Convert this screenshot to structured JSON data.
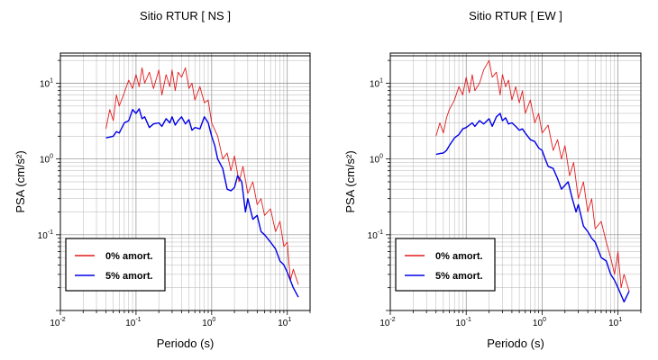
{
  "chart_data": [
    {
      "type": "line",
      "title": "Sitio RTUR [ NS ]",
      "xlabel": "Periodo (s)",
      "ylabel": "PSA (cm/s²)",
      "xscale": "log",
      "yscale": "log",
      "xlim": [
        0.01,
        20
      ],
      "ylim": [
        0.01,
        25
      ],
      "xticks": [
        {
          "base": "10",
          "exp": "-2",
          "value": 0.01
        },
        {
          "base": "10",
          "exp": "-1",
          "value": 0.1
        },
        {
          "base": "10",
          "exp": "0",
          "value": 1
        },
        {
          "base": "10",
          "exp": "1",
          "value": 10
        }
      ],
      "yticks": [
        {
          "base": "10",
          "exp": "-1",
          "value": 0.1
        },
        {
          "base": "10",
          "exp": "0",
          "value": 1
        },
        {
          "base": "10",
          "exp": "1",
          "value": 10
        }
      ],
      "grid": true,
      "legend_position": "bottom-left",
      "series": [
        {
          "name": "0% amort.",
          "color": "#e41a1c",
          "x": [
            0.04,
            0.045,
            0.05,
            0.055,
            0.06,
            0.07,
            0.08,
            0.09,
            0.1,
            0.11,
            0.12,
            0.13,
            0.15,
            0.17,
            0.2,
            0.22,
            0.25,
            0.28,
            0.3,
            0.33,
            0.36,
            0.4,
            0.45,
            0.5,
            0.55,
            0.6,
            0.7,
            0.8,
            0.9,
            1.0,
            1.2,
            1.4,
            1.6,
            1.8,
            2.0,
            2.3,
            2.6,
            3.0,
            3.5,
            4.0,
            4.5,
            5.0,
            6.0,
            7.0,
            8.0,
            9.0,
            10.0,
            11.0,
            12.0,
            14.0
          ],
          "y": [
            2.5,
            4.5,
            3.2,
            7.0,
            5.0,
            7.5,
            11,
            8.5,
            13,
            9.0,
            16,
            10,
            14,
            8.5,
            15,
            7.0,
            13,
            9.0,
            15,
            8.0,
            14,
            12,
            16,
            8.5,
            10,
            6.0,
            9.0,
            5.5,
            6.0,
            3.0,
            2.0,
            1.0,
            1.2,
            0.7,
            1.1,
            0.5,
            0.8,
            0.35,
            0.5,
            0.25,
            0.3,
            0.18,
            0.22,
            0.11,
            0.15,
            0.07,
            0.08,
            0.025,
            0.035,
            0.022
          ]
        },
        {
          "name": "5% amort.",
          "color": "#0000e6",
          "x": [
            0.04,
            0.045,
            0.05,
            0.055,
            0.06,
            0.07,
            0.08,
            0.09,
            0.1,
            0.11,
            0.12,
            0.13,
            0.15,
            0.17,
            0.2,
            0.22,
            0.25,
            0.28,
            0.3,
            0.33,
            0.36,
            0.4,
            0.45,
            0.5,
            0.55,
            0.6,
            0.7,
            0.8,
            0.9,
            1.0,
            1.1,
            1.2,
            1.4,
            1.6,
            1.8,
            2.0,
            2.2,
            2.5,
            2.8,
            3.0,
            3.5,
            4.0,
            4.5,
            5.0,
            6.0,
            7.0,
            8.0,
            9.0,
            10.0,
            11.0,
            12.0,
            14.0
          ],
          "y": [
            1.9,
            1.95,
            2.0,
            2.3,
            2.2,
            3.0,
            3.2,
            4.5,
            4.0,
            4.6,
            3.4,
            3.6,
            2.6,
            2.9,
            3.0,
            2.7,
            3.4,
            3.0,
            3.6,
            2.8,
            3.2,
            3.6,
            2.9,
            3.3,
            2.4,
            2.6,
            2.5,
            3.6,
            3.0,
            2.0,
            1.5,
            1.0,
            0.75,
            0.4,
            0.38,
            0.42,
            0.6,
            0.5,
            0.2,
            0.3,
            0.16,
            0.18,
            0.11,
            0.1,
            0.08,
            0.065,
            0.045,
            0.04,
            0.032,
            0.025,
            0.02,
            0.015
          ]
        }
      ]
    },
    {
      "type": "line",
      "title": "Sitio RTUR [ EW ]",
      "xlabel": "Periodo (s)",
      "ylabel": "PSA (cm/s²)",
      "xscale": "log",
      "yscale": "log",
      "xlim": [
        0.01,
        20
      ],
      "ylim": [
        0.01,
        25
      ],
      "xticks": [
        {
          "base": "10",
          "exp": "-2",
          "value": 0.01
        },
        {
          "base": "10",
          "exp": "-1",
          "value": 0.1
        },
        {
          "base": "10",
          "exp": "0",
          "value": 1
        },
        {
          "base": "10",
          "exp": "1",
          "value": 10
        }
      ],
      "yticks": [
        {
          "base": "10",
          "exp": "-1",
          "value": 0.1
        },
        {
          "base": "10",
          "exp": "0",
          "value": 1
        },
        {
          "base": "10",
          "exp": "1",
          "value": 10
        }
      ],
      "grid": true,
      "legend_position": "bottom-left",
      "series": [
        {
          "name": "0% amort.",
          "color": "#e41a1c",
          "x": [
            0.04,
            0.045,
            0.05,
            0.055,
            0.06,
            0.07,
            0.08,
            0.09,
            0.1,
            0.11,
            0.12,
            0.13,
            0.15,
            0.17,
            0.2,
            0.22,
            0.25,
            0.28,
            0.3,
            0.33,
            0.36,
            0.4,
            0.45,
            0.5,
            0.55,
            0.6,
            0.7,
            0.8,
            0.9,
            1.0,
            1.2,
            1.4,
            1.6,
            1.8,
            2.0,
            2.3,
            2.6,
            3.0,
            3.5,
            4.0,
            4.5,
            5.0,
            6.0,
            7.0,
            8.0,
            9.0,
            10.0,
            11.0,
            12.0,
            14.0
          ],
          "y": [
            2.0,
            3.0,
            2.2,
            3.5,
            4.5,
            6.0,
            9.0,
            7.0,
            12,
            7.5,
            13,
            8.0,
            10,
            15,
            20,
            12,
            14,
            7.0,
            13,
            9.0,
            11,
            6.0,
            9.0,
            5.5,
            8.0,
            4.0,
            6.0,
            3.0,
            4.0,
            2.2,
            2.8,
            1.3,
            1.8,
            1.0,
            1.5,
            0.6,
            0.9,
            0.3,
            0.5,
            0.2,
            0.3,
            0.12,
            0.15,
            0.08,
            0.05,
            0.03,
            0.06,
            0.02,
            0.03,
            0.018
          ]
        },
        {
          "name": "5% amort.",
          "color": "#0000e6",
          "x": [
            0.04,
            0.045,
            0.05,
            0.055,
            0.06,
            0.07,
            0.08,
            0.09,
            0.1,
            0.11,
            0.12,
            0.13,
            0.15,
            0.17,
            0.2,
            0.22,
            0.25,
            0.28,
            0.3,
            0.33,
            0.36,
            0.4,
            0.45,
            0.5,
            0.55,
            0.6,
            0.7,
            0.8,
            0.9,
            1.0,
            1.1,
            1.2,
            1.4,
            1.6,
            1.8,
            2.0,
            2.2,
            2.5,
            2.8,
            3.0,
            3.5,
            4.0,
            4.5,
            5.0,
            6.0,
            7.0,
            8.0,
            9.0,
            10.0,
            11.0,
            12.0,
            14.0
          ],
          "y": [
            1.15,
            1.18,
            1.2,
            1.3,
            1.5,
            1.9,
            2.1,
            2.5,
            2.6,
            2.8,
            3.0,
            2.7,
            3.2,
            2.9,
            3.4,
            2.7,
            3.6,
            4.0,
            3.2,
            3.5,
            2.9,
            3.0,
            2.7,
            2.4,
            2.5,
            2.2,
            1.8,
            1.7,
            1.4,
            1.3,
            1.0,
            0.8,
            0.75,
            0.55,
            0.4,
            0.45,
            0.5,
            0.3,
            0.2,
            0.25,
            0.13,
            0.11,
            0.09,
            0.08,
            0.05,
            0.045,
            0.03,
            0.025,
            0.02,
            0.016,
            0.013,
            0.018
          ]
        }
      ]
    }
  ]
}
